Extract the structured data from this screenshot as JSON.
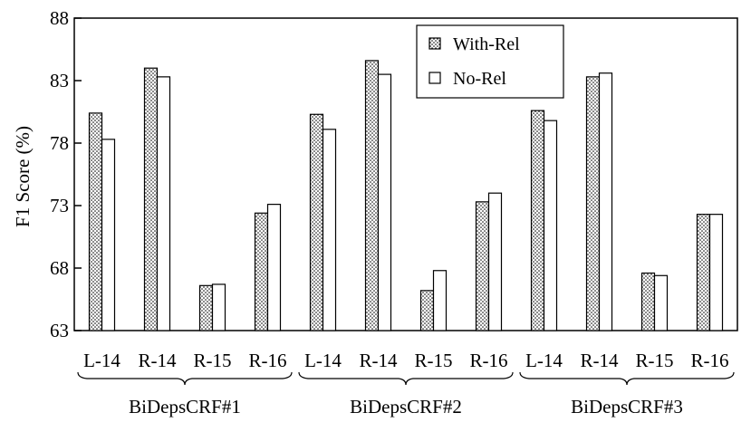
{
  "chart_data": {
    "type": "bar",
    "title": "",
    "xlabel": "",
    "ylabel": "F1 Score (%)",
    "ylim": [
      63,
      88
    ],
    "yticks": [
      63,
      68,
      73,
      78,
      83,
      88
    ],
    "grid": false,
    "legend_position": "top-center",
    "groups": [
      {
        "name": "BiDepsCRF#1",
        "categories": [
          "L-14",
          "R-14",
          "R-15",
          "R-16"
        ],
        "series": [
          {
            "name": "With-Rel",
            "values": [
              80.4,
              84.0,
              66.6,
              72.4
            ]
          },
          {
            "name": "No-Rel",
            "values": [
              78.3,
              83.3,
              66.7,
              73.1
            ]
          }
        ]
      },
      {
        "name": "BiDepsCRF#2",
        "categories": [
          "L-14",
          "R-14",
          "R-15",
          "R-16"
        ],
        "series": [
          {
            "name": "With-Rel",
            "values": [
              80.3,
              84.6,
              66.2,
              73.3
            ]
          },
          {
            "name": "No-Rel",
            "values": [
              79.1,
              83.5,
              67.8,
              74.0
            ]
          }
        ]
      },
      {
        "name": "BiDepsCRF#3",
        "categories": [
          "L-14",
          "R-14",
          "R-15",
          "R-16"
        ],
        "series": [
          {
            "name": "With-Rel",
            "values": [
              80.6,
              83.3,
              67.6,
              72.3
            ]
          },
          {
            "name": "No-Rel",
            "values": [
              79.8,
              83.6,
              67.4,
              72.3
            ]
          }
        ]
      }
    ],
    "legend": [
      {
        "name": "With-Rel",
        "pattern": "dotted"
      },
      {
        "name": "No-Rel",
        "pattern": "plain"
      }
    ]
  }
}
